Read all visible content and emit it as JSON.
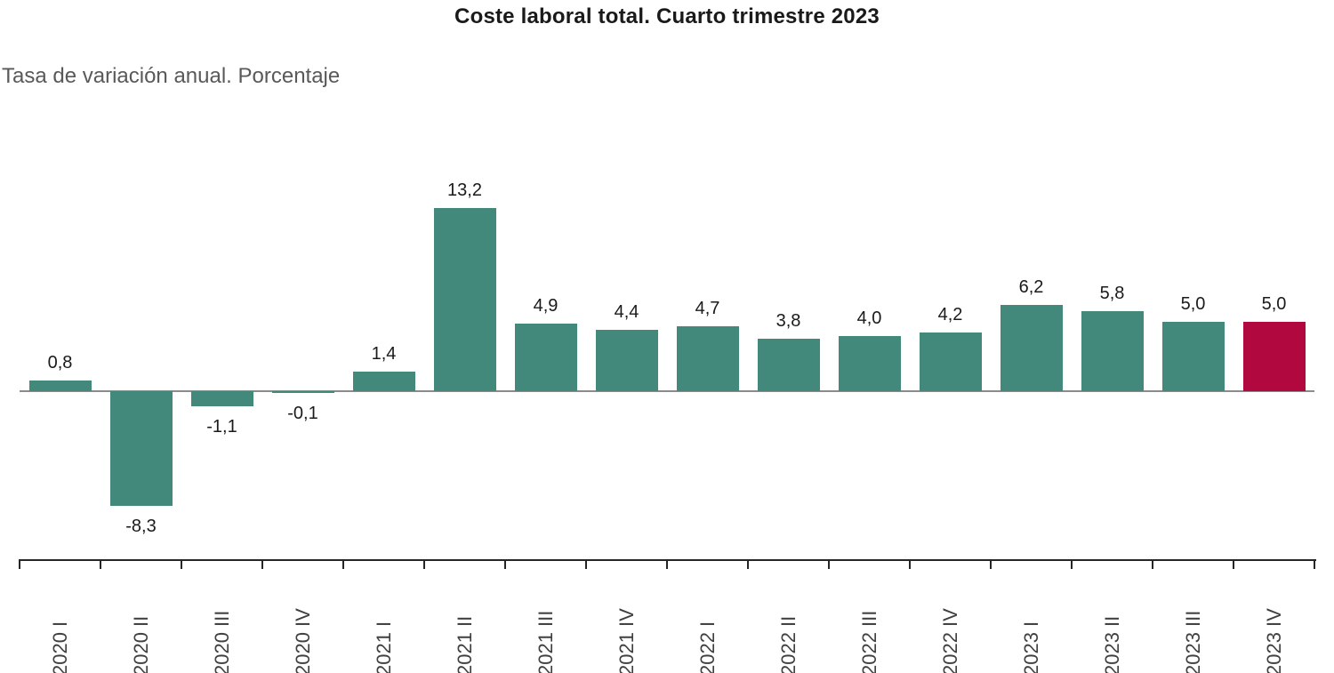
{
  "chart_data": {
    "type": "bar",
    "title": "Coste laboral total. Cuarto trimestre 2023",
    "subtitle": "Tasa de variación anual. Porcentaje",
    "categories": [
      "2020 I",
      "2020 II",
      "2020 III",
      "2020 IV",
      "2021 I",
      "2021 II",
      "2021 III",
      "2021 IV",
      "2022 I",
      "2022 II",
      "2022 III",
      "2022 IV",
      "2023 I",
      "2023 II",
      "2023 III",
      "2023 IV"
    ],
    "values": [
      0.8,
      -8.3,
      -1.1,
      -0.1,
      1.4,
      13.2,
      4.9,
      4.4,
      4.7,
      3.8,
      4.0,
      4.2,
      6.2,
      5.8,
      5.0,
      5.0
    ],
    "value_labels": [
      "0,8",
      "-8,3",
      "-1,1",
      "-0,1",
      "1,4",
      "13,2",
      "4,9",
      "4,4",
      "4,7",
      "3,8",
      "4,0",
      "4,2",
      "6,2",
      "5,8",
      "5,0",
      "5,0"
    ],
    "highlight_index": 15,
    "xlabel": "",
    "ylabel": "",
    "ylim": [
      -10,
      15
    ],
    "grid": false,
    "legend": "none",
    "bar_orientation": "vertical",
    "x_tick_rotation": 90,
    "colors": {
      "bar": "#43897B",
      "highlight": "#B10840",
      "zero_line": "#8C8C8C",
      "axis": "#262626",
      "subtitle_text": "#595959",
      "value_text": "#1A1A1A",
      "tick_label_text": "#404040"
    }
  }
}
